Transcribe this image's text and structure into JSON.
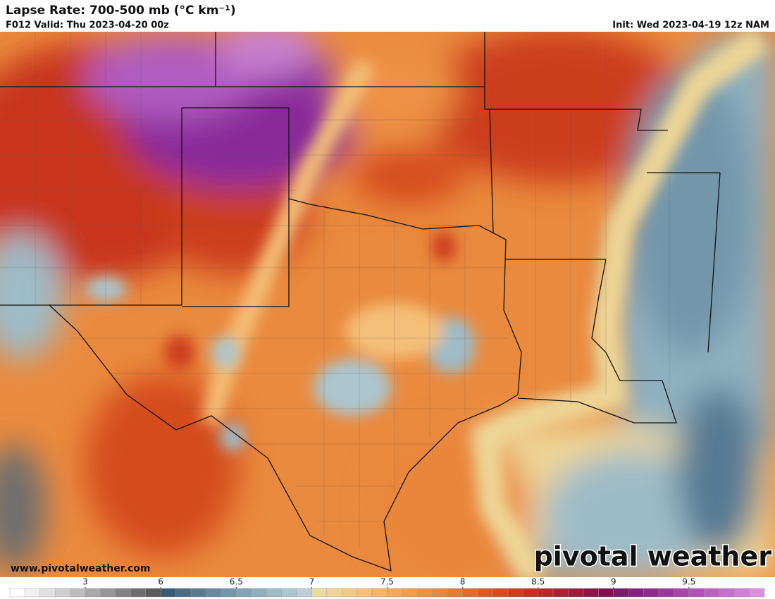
{
  "header": {
    "title": "Lapse Rate: 700-500 mb (°C km⁻¹)",
    "valid": "F012 Valid: Thu 2023-04-20 00z",
    "init": "Init: Wed 2023-04-19 12z NAM"
  },
  "watermark": {
    "url": "www.pivotalweather.com",
    "logo": "pivotal weather"
  },
  "colorbar": {
    "levels": [
      0,
      0.6,
      1.2,
      1.8,
      2.4,
      3,
      3.6,
      4.2,
      4.8,
      5.4,
      6,
      6.1,
      6.2,
      6.3,
      6.4,
      6.5,
      6.6,
      6.7,
      6.8,
      6.9,
      7,
      7.1,
      7.2,
      7.3,
      7.4,
      7.5,
      7.6,
      7.7,
      7.8,
      7.9,
      8,
      8.1,
      8.2,
      8.3,
      8.4,
      8.5,
      8.6,
      8.7,
      8.8,
      8.9,
      9,
      9.1,
      9.2,
      9.3,
      9.4,
      9.5,
      9.6,
      9.7,
      9.8,
      9.9
    ],
    "colors": [
      "#ffffff",
      "#f0f0f0",
      "#e0e0e0",
      "#cfcfcf",
      "#bdbdbd",
      "#a8a8a8",
      "#969696",
      "#828282",
      "#6e6e6e",
      "#5a5a5a",
      "#3d5a75",
      "#4a6b85",
      "#577a93",
      "#6689a0",
      "#7396ab",
      "#80a3b5",
      "#8eafbe",
      "#9dbbc7",
      "#abc6cf",
      "#bad0d6",
      "#e8dca0",
      "#eed596",
      "#f2ca86",
      "#f4bf78",
      "#f5b46a",
      "#f3a85d",
      "#f19d50",
      "#ee9145",
      "#ea863a",
      "#e57a30",
      "#e06a28",
      "#db5a22",
      "#d54b1e",
      "#cc3d1e",
      "#c2311f",
      "#b52a28",
      "#a82232",
      "#9c1b3b",
      "#8f1445",
      "#830f4e",
      "#7a1a6e",
      "#84207f",
      "#8f2b8e",
      "#9a379c",
      "#a644aa",
      "#b151b7",
      "#bc60c2",
      "#c66fcc",
      "#d080d6",
      "#da90de"
    ],
    "ticks": [
      3,
      6,
      6.5,
      7,
      7.5,
      8,
      8.5,
      9,
      9.5
    ]
  }
}
